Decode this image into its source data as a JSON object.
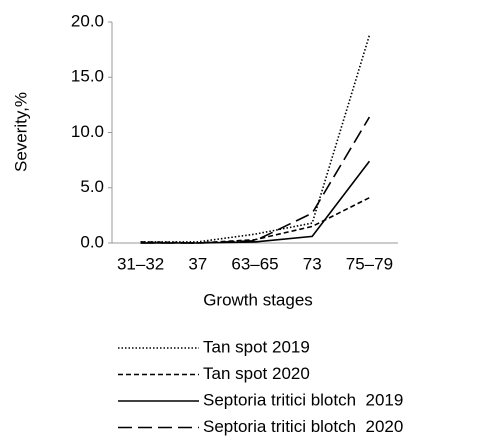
{
  "chart_data": {
    "type": "line",
    "y_label": "Severity,%",
    "x_label": "Growth stages",
    "categories": [
      "31–32",
      "37",
      "63–65",
      "73",
      "75–79"
    ],
    "ylim": [
      0,
      20
    ],
    "yticks": [
      {
        "value": 0,
        "label": "0.0"
      },
      {
        "value": 5,
        "label": "5.0"
      },
      {
        "value": 10,
        "label": "10.0"
      },
      {
        "value": 15,
        "label": "15.0"
      },
      {
        "value": 20,
        "label": "20.0"
      }
    ],
    "grid": false,
    "series": [
      {
        "name": "Tan spot 2019",
        "color": "#000000",
        "dash": "1.5 2",
        "values": [
          0.1,
          0.1,
          0.8,
          1.8,
          18.8
        ]
      },
      {
        "name": "Tan spot 2020",
        "color": "#000000",
        "dash": "5 3",
        "values": [
          0.1,
          0,
          0.3,
          1.5,
          4.1
        ]
      },
      {
        "name": "Septoria tritici blotch  2019",
        "color": "#000000",
        "dash": "none",
        "values": [
          0,
          0,
          0.1,
          0.6,
          7.4
        ]
      },
      {
        "name": "Septoria tritici blotch  2020",
        "color": "#000000",
        "dash": "14 6",
        "values": [
          0,
          0,
          0.2,
          2.7,
          11.4
        ]
      }
    ]
  }
}
